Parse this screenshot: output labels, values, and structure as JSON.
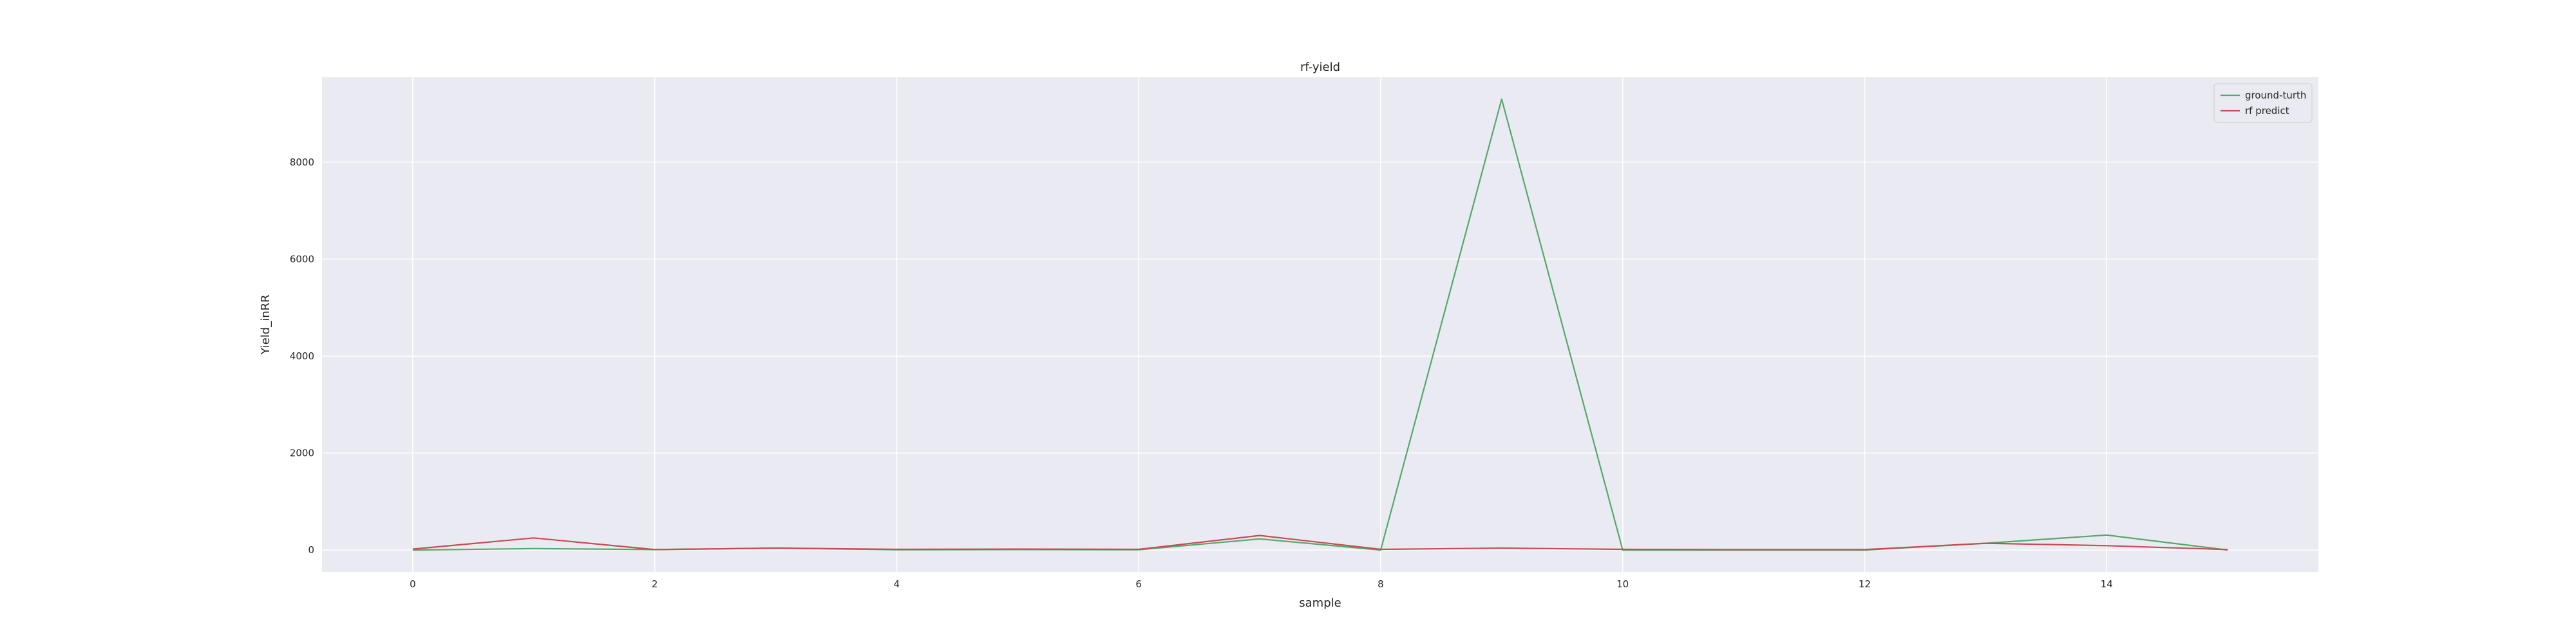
{
  "chart_data": {
    "type": "line",
    "title": "rf-yield",
    "xlabel": "sample",
    "ylabel": "Yield_inRR",
    "xlim": [
      -0.75,
      15.75
    ],
    "ylim": [
      -450,
      9750
    ],
    "xticks": [
      0,
      2,
      4,
      6,
      8,
      10,
      12,
      14
    ],
    "yticks": [
      0,
      2000,
      4000,
      6000,
      8000
    ],
    "grid": true,
    "legend_position": "top-right",
    "x": [
      0,
      1,
      2,
      3,
      4,
      5,
      6,
      7,
      8,
      9,
      10,
      11,
      12,
      13,
      14,
      15
    ],
    "series": [
      {
        "name": "ground-turth",
        "color": "#55a868",
        "values": [
          0,
          30,
          10,
          40,
          5,
          10,
          5,
          230,
          0,
          9300,
          0,
          0,
          0,
          140,
          310,
          0
        ]
      },
      {
        "name": "rf predict",
        "color": "#c44e52",
        "values": [
          20,
          250,
          10,
          40,
          15,
          20,
          15,
          300,
          15,
          40,
          15,
          10,
          10,
          140,
          90,
          10
        ]
      }
    ]
  }
}
